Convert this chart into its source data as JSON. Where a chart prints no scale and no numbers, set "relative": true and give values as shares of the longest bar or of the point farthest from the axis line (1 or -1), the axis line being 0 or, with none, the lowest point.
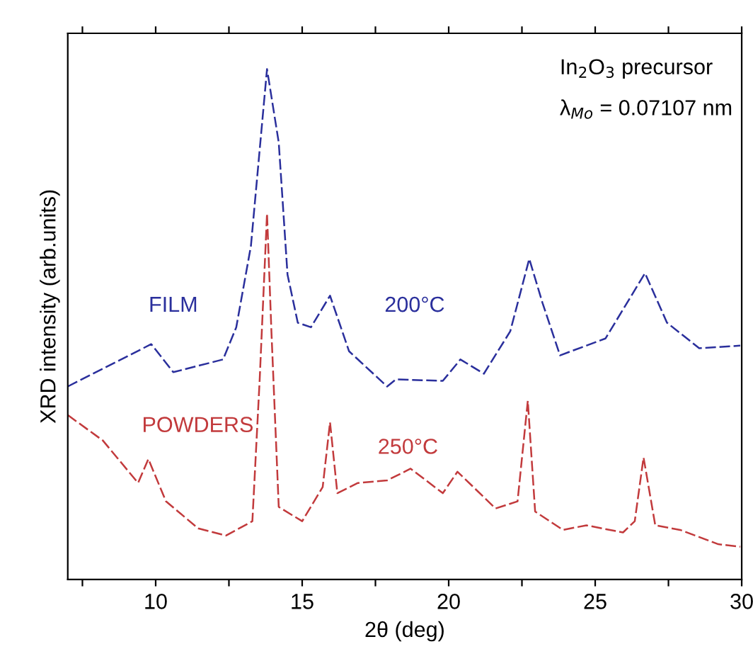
{
  "chart_data": {
    "type": "line",
    "relative": true,
    "xlabel": "2θ (deg)",
    "ylabel": "XRD intensity (arb.units)",
    "xlim": [
      7,
      30
    ],
    "xticks": [
      {
        "value": 7.5,
        "label": null
      },
      10,
      {
        "value": 12.5,
        "label": null
      },
      15,
      {
        "value": 17.5,
        "label": null
      },
      20,
      {
        "value": 22.5,
        "label": null
      },
      25,
      {
        "value": 27.5,
        "label": null
      },
      30
    ],
    "tick_labels": "x",
    "grid": false,
    "legend": false,
    "marker": "none",
    "line_style": "dashed",
    "annotations": [
      "200°C",
      "250°C",
      "In$_{2}$O$_{3}$ precursor",
      "λ$_{Mo}$ = 0.07107 nm"
    ],
    "series": [
      {
        "name": "FILM",
        "color": "#2a2f9c",
        "x": [
          7.0,
          9.85,
          10.6,
          12.3,
          12.75,
          13.25,
          13.8,
          14.2,
          14.5,
          14.85,
          15.3,
          15.95,
          16.6,
          17.9,
          18.2,
          19.8,
          20.4,
          21.2,
          22.1,
          22.75,
          23.2,
          23.8,
          25.35,
          26.7,
          27.45,
          28.55,
          29.95
        ],
        "values": [
          0.378,
          0.461,
          0.406,
          0.431,
          0.494,
          0.653,
          1,
          0.856,
          0.597,
          0.503,
          0.494,
          0.556,
          0.447,
          0.378,
          0.392,
          0.389,
          0.431,
          0.403,
          0.486,
          0.628,
          0.542,
          0.439,
          0.472,
          0.6,
          0.503,
          0.453,
          0.458
        ]
      },
      {
        "name": "POWDERS",
        "color": "#c23a3c",
        "x": [
          7.0,
          8.2,
          9.4,
          9.75,
          10.35,
          11.45,
          12.4,
          13.3,
          13.55,
          13.8,
          13.95,
          14.2,
          15.0,
          15.7,
          15.95,
          16.2,
          16.9,
          17.9,
          18.7,
          19.8,
          20.3,
          21.6,
          22.35,
          22.7,
          22.95,
          23.9,
          24.7,
          25.95,
          26.35,
          26.65,
          27.05,
          27.9,
          29.2,
          29.95
        ],
        "values": [
          0.322,
          0.272,
          0.189,
          0.236,
          0.153,
          0.1,
          0.086,
          0.114,
          0.392,
          0.717,
          0.486,
          0.142,
          0.114,
          0.181,
          0.308,
          0.169,
          0.189,
          0.194,
          0.217,
          0.169,
          0.211,
          0.139,
          0.153,
          0.35,
          0.133,
          0.097,
          0.106,
          0.092,
          0.114,
          0.239,
          0.106,
          0.097,
          0.069,
          0.064
        ]
      }
    ]
  }
}
